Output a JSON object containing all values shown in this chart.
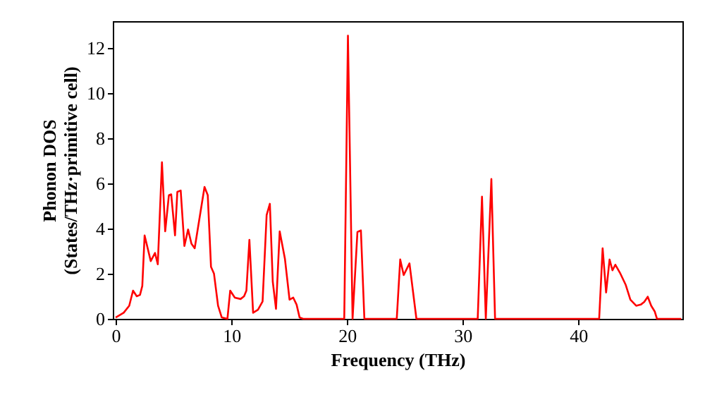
{
  "chart_data": {
    "type": "line",
    "xlabel": "Frequency (THz)",
    "ylabel": "Phonon DOS\n(States/THz·primitive cell)",
    "xlim": [
      -0.25,
      49
    ],
    "ylim": [
      0,
      13.2
    ],
    "xticks": [
      0,
      10,
      20,
      30,
      40
    ],
    "yticks": [
      0,
      2,
      4,
      6,
      8,
      10,
      12
    ],
    "grid": false,
    "line_style": "solid",
    "marker": "none",
    "series": [
      {
        "color": "#ff0000",
        "x": [
          0,
          0.69,
          1.17,
          1.5,
          1.82,
          2.1,
          2.3,
          2.5,
          3.03,
          3.4,
          3.64,
          4.0,
          4.28,
          4.6,
          4.8,
          5.13,
          5.33,
          5.62,
          5.94,
          6.26,
          6.55,
          6.83,
          7.68,
          7.96,
          8.24,
          8.5,
          8.85,
          9.17,
          9.66,
          9.9,
          10.3,
          10.8,
          11.1,
          11.3,
          11.56,
          11.88,
          12.3,
          12.7,
          13.05,
          13.33,
          13.58,
          13.86,
          14.18,
          14.63,
          15.03,
          15.35,
          15.64,
          15.9,
          16.2,
          19.76,
          20.08,
          20.48,
          20.9,
          21.2,
          21.5,
          24.3,
          24.6,
          24.9,
          25.4,
          26.0,
          31.3,
          31.67,
          32.0,
          32.48,
          32.8,
          41.8,
          42.1,
          42.4,
          42.7,
          42.95,
          43.2,
          43.6,
          44.1,
          44.5,
          45.0,
          45.4,
          45.7,
          46.0,
          46.3,
          46.6,
          46.8,
          48.9
        ],
        "values": [
          0.06,
          0.27,
          0.58,
          1.25,
          1.0,
          1.06,
          1.46,
          3.7,
          2.56,
          2.92,
          2.42,
          6.94,
          3.88,
          5.48,
          5.52,
          3.7,
          5.63,
          5.69,
          3.23,
          3.96,
          3.33,
          3.13,
          5.85,
          5.48,
          2.31,
          2.0,
          0.58,
          0.06,
          0,
          1.25,
          0.94,
          0.88,
          1.0,
          1.25,
          3.5,
          0.27,
          0.4,
          0.77,
          4.6,
          5.1,
          1.65,
          0.44,
          3.88,
          2.67,
          0.85,
          0.94,
          0.63,
          0.06,
          0,
          0,
          12.56,
          0,
          3.85,
          3.92,
          0,
          0,
          2.63,
          1.94,
          2.46,
          0,
          0,
          5.42,
          0,
          6.2,
          0,
          0,
          3.13,
          1.17,
          2.63,
          2.15,
          2.4,
          2.04,
          1.5,
          0.85,
          0.58,
          0.63,
          0.75,
          0.98,
          0.58,
          0.33,
          0,
          0
        ]
      }
    ]
  }
}
